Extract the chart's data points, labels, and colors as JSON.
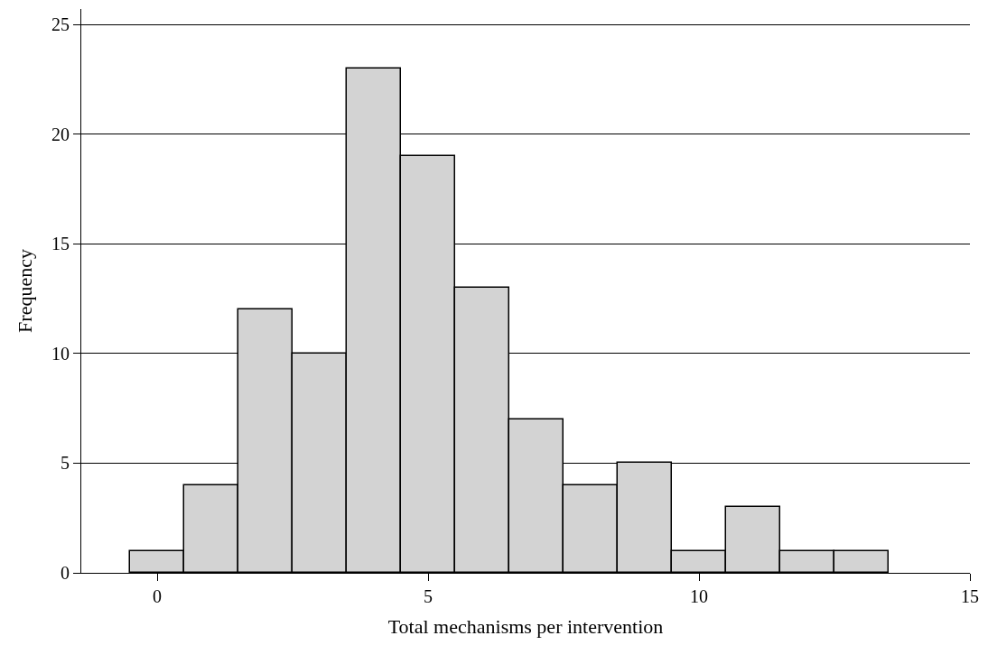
{
  "chart_data": {
    "type": "histogram",
    "xlabel": "Total mechanisms per intervention",
    "ylabel": "Frequency",
    "bins": [
      -0.5,
      0.5,
      1.5,
      2.5,
      3.5,
      4.5,
      5.5,
      6.5,
      7.5,
      8.5,
      9.5,
      10.5,
      11.5,
      12.5,
      13.5
    ],
    "values": [
      1,
      4,
      12,
      10,
      23,
      19,
      13,
      7,
      4,
      5,
      1,
      3,
      1,
      1
    ],
    "color": "#d3d3d3",
    "xlim": [
      -1.4,
      15
    ],
    "xticks": [
      0,
      5,
      10,
      15
    ],
    "ylim": [
      0,
      25.7
    ],
    "yticks": [
      0,
      5,
      10,
      15,
      20,
      25
    ],
    "grid": "y"
  }
}
